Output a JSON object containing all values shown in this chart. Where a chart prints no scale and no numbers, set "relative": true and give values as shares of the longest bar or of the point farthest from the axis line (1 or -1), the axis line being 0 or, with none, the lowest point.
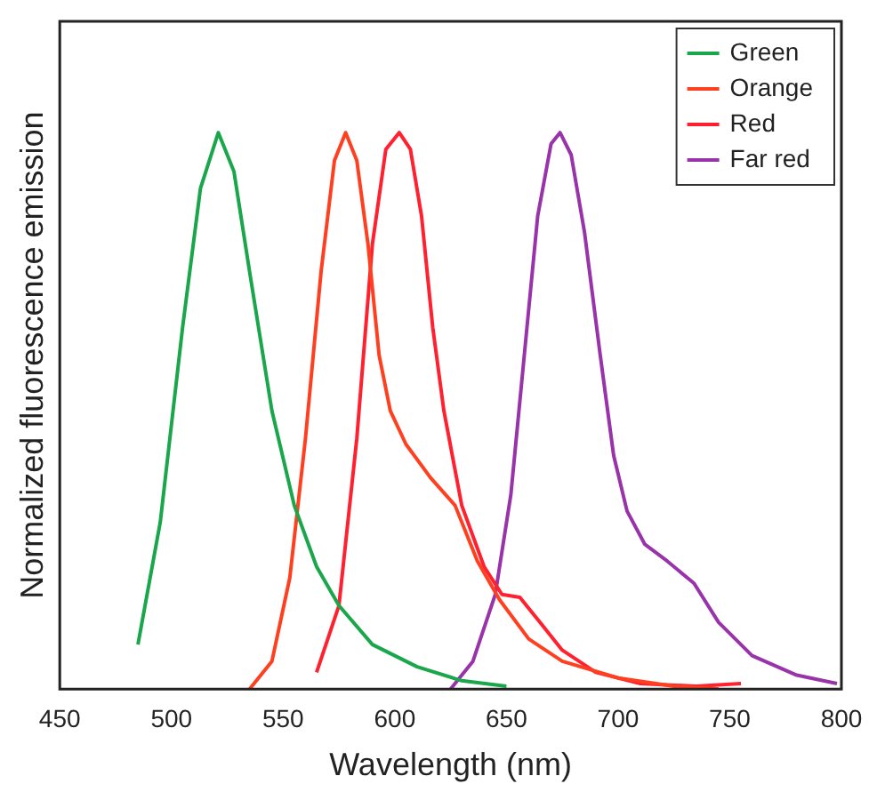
{
  "chart_data": {
    "type": "line",
    "xlabel": "Wavelength (nm)",
    "ylabel": "Normalized fluorescence emission",
    "relative": true,
    "xlim": [
      450,
      800
    ],
    "xticks": [
      450,
      500,
      550,
      600,
      650,
      700,
      750,
      800
    ],
    "legend": "top right",
    "marker": "none",
    "line_style": "solid",
    "grid": false,
    "series": [
      {
        "name": "Green",
        "color": "#1aa64a",
        "x": [
          485,
          495,
          505,
          513,
          521,
          528,
          535,
          545,
          555,
          565,
          575,
          590,
          610,
          630,
          650
        ],
        "values": [
          0.08,
          0.3,
          0.65,
          0.9,
          1,
          0.93,
          0.75,
          0.5,
          0.33,
          0.22,
          0.15,
          0.08,
          0.04,
          0.015,
          0.005
        ]
      },
      {
        "name": "Orange",
        "color": "#ff4020",
        "x": [
          535,
          545,
          553,
          560,
          567,
          573,
          578,
          583,
          588,
          593,
          598,
          605,
          616,
          627,
          637,
          647,
          660,
          675,
          700,
          725,
          745
        ],
        "values": [
          0,
          0.05,
          0.2,
          0.45,
          0.75,
          0.95,
          1,
          0.95,
          0.8,
          0.6,
          0.5,
          0.44,
          0.38,
          0.33,
          0.23,
          0.16,
          0.09,
          0.05,
          0.02,
          0.005,
          0
        ]
      },
      {
        "name": "Red",
        "color": "#ff2030",
        "x": [
          565,
          575,
          583,
          590,
          596,
          602,
          607,
          612,
          617,
          622,
          630,
          640,
          648,
          656,
          665,
          675,
          690,
          710,
          735,
          755
        ],
        "values": [
          0.03,
          0.15,
          0.45,
          0.8,
          0.97,
          1,
          0.97,
          0.85,
          0.65,
          0.5,
          0.33,
          0.22,
          0.17,
          0.165,
          0.12,
          0.07,
          0.03,
          0.01,
          0.005,
          0.01
        ]
      },
      {
        "name": "Far red",
        "color": "#9933aa",
        "x": [
          625,
          635,
          645,
          652,
          658,
          664,
          670,
          674,
          679,
          685,
          692,
          698,
          704,
          712,
          722,
          734,
          745,
          760,
          780,
          798
        ],
        "values": [
          0,
          0.05,
          0.17,
          0.35,
          0.6,
          0.85,
          0.98,
          1,
          0.96,
          0.82,
          0.6,
          0.42,
          0.32,
          0.26,
          0.23,
          0.19,
          0.12,
          0.06,
          0.025,
          0.01
        ]
      }
    ]
  }
}
